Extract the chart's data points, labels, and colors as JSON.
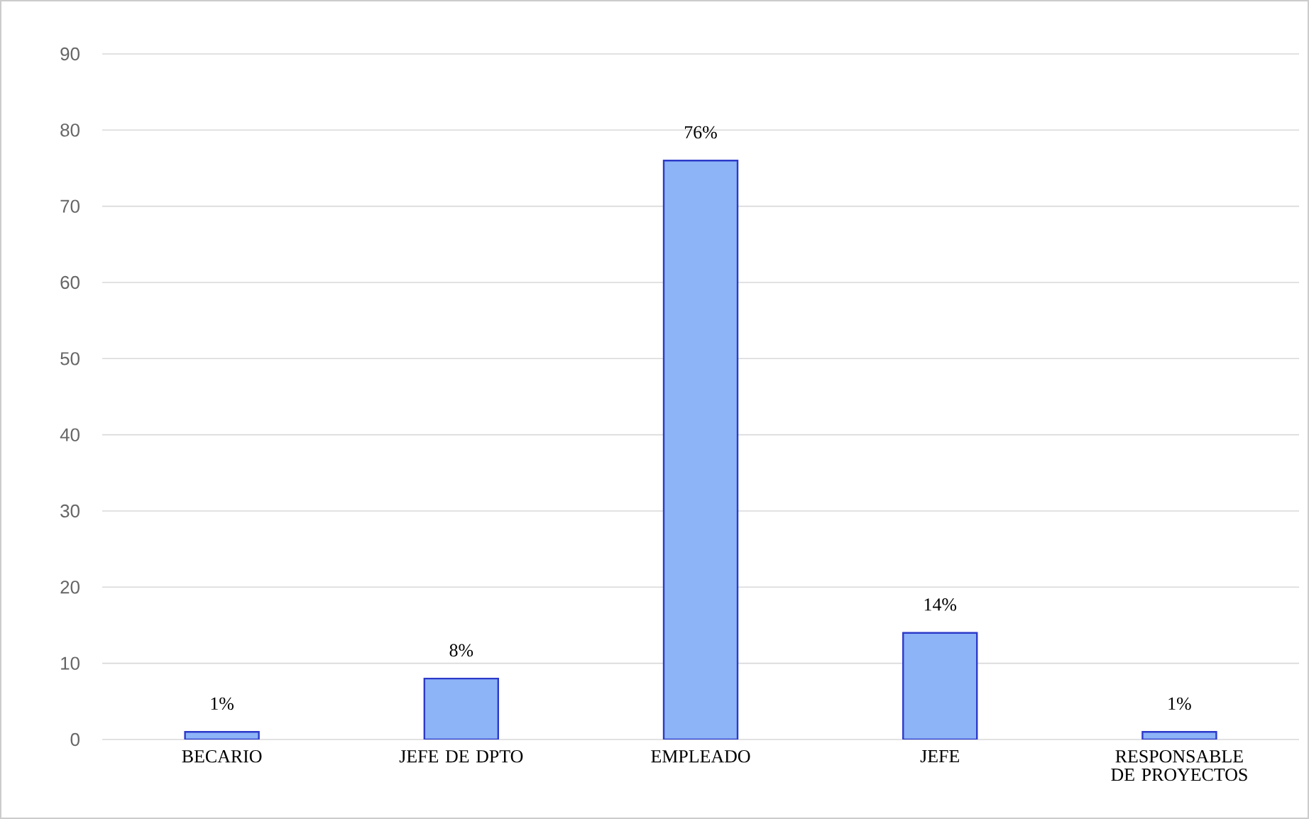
{
  "chart_data": {
    "type": "bar",
    "categories": [
      "BECARIO",
      "JEFE DE DPTO",
      "EMPLEADO",
      "JEFE",
      "RESPONSABLE DE PROYECTOS"
    ],
    "values": [
      1,
      8,
      76,
      14,
      1
    ],
    "value_labels": [
      "1%",
      "8%",
      "76%",
      "14%",
      "1%"
    ],
    "color": "#8db4f7",
    "ylim": [
      0,
      90
    ],
    "yticks": [
      0,
      10,
      20,
      30,
      40,
      50,
      60,
      70,
      80,
      90
    ],
    "grid": "y"
  }
}
